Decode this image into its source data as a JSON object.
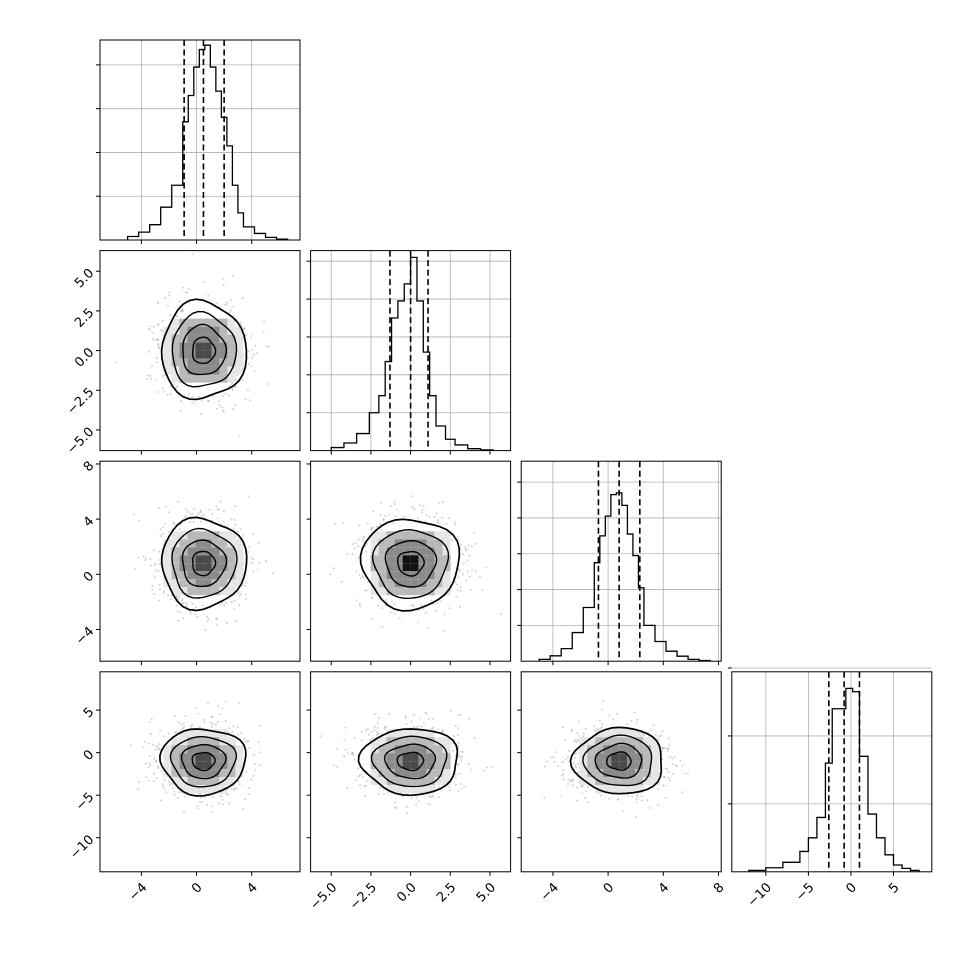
{
  "figure": {
    "background": "#ffffff",
    "line_color": "#000000",
    "grid_color": "#b0b0b0",
    "scatter_color": "#9a9a9a",
    "density_colors": [
      "#ffffff",
      "#e6e6e6",
      "#b9b9b9",
      "#8a8a8a",
      "#4a4a4a",
      "#111111"
    ]
  },
  "chart_data": {
    "type": "corner",
    "grid": true,
    "parameters": [
      {
        "range": [
          -7,
          7.5
        ],
        "ticks": [
          -4,
          0,
          4
        ],
        "tick_labels": [
          "−4",
          "0",
          "4"
        ],
        "mean": 0.5,
        "sigma": 1.5,
        "quantiles": [
          -0.9,
          0.5,
          2.0
        ],
        "hist_ticks": [
          1,
          2,
          3,
          4
        ],
        "hist": {
          "edges": [
            -5.0,
            -4.2,
            -3.4,
            -2.6,
            -1.8,
            -1.0,
            -0.6,
            -0.2,
            0.2,
            0.6,
            1.0,
            1.4,
            1.8,
            2.2,
            2.6,
            3.0,
            3.4,
            4.2,
            5.0,
            5.8,
            6.6
          ],
          "counts": [
            0.08,
            0.18,
            0.35,
            0.75,
            1.25,
            2.7,
            3.3,
            3.95,
            4.35,
            4.45,
            3.95,
            3.4,
            2.8,
            2.15,
            1.25,
            0.62,
            0.3,
            0.15,
            0.06,
            0.02
          ],
          "ylim": [
            0,
            4.5
          ]
        }
      },
      {
        "range": [
          -6.3,
          6.3
        ],
        "ticks": [
          -5.0,
          -2.5,
          0.0,
          2.5,
          5.0
        ],
        "tick_labels": [
          "−5.0",
          "−2.5",
          "0.0",
          "2.5",
          "5.0"
        ],
        "mean": 0,
        "sigma": 1.5,
        "quantiles": [
          -1.3,
          0.0,
          1.1
        ],
        "hist_ticks": [
          1,
          2,
          3,
          4,
          5
        ],
        "hist": {
          "edges": [
            -5.0,
            -4.2,
            -3.4,
            -2.6,
            -2.0,
            -1.6,
            -1.2,
            -0.8,
            -0.4,
            0.0,
            0.4,
            0.8,
            1.2,
            1.6,
            2.2,
            2.8,
            3.6,
            4.4,
            5.2
          ],
          "counts": [
            0.08,
            0.2,
            0.45,
            1.0,
            1.45,
            2.35,
            3.5,
            3.95,
            4.4,
            5.1,
            3.95,
            2.6,
            1.45,
            0.65,
            0.3,
            0.15,
            0.05,
            0.02
          ],
          "ylim": [
            0,
            5.2
          ]
        }
      },
      {
        "range": [
          -6.3,
          8.2
        ],
        "ticks": [
          -4,
          0,
          4,
          8
        ],
        "tick_labels": [
          "−4",
          "0",
          "4",
          "8"
        ],
        "mean": 0.8,
        "sigma": 1.6,
        "quantiles": [
          -0.7,
          0.8,
          2.3
        ],
        "hist_ticks": [
          1,
          2,
          3,
          4,
          5
        ],
        "hist": {
          "edges": [
            -5.0,
            -4.2,
            -3.4,
            -2.6,
            -1.8,
            -1.0,
            -0.6,
            -0.2,
            0.2,
            0.6,
            1.0,
            1.4,
            1.8,
            2.2,
            2.6,
            3.4,
            4.2,
            5.0,
            5.8,
            6.6,
            7.4
          ],
          "counts": [
            0.05,
            0.15,
            0.35,
            0.8,
            1.5,
            2.75,
            3.5,
            4.05,
            4.65,
            4.7,
            4.35,
            3.55,
            2.95,
            2.05,
            1.0,
            0.55,
            0.28,
            0.14,
            0.05,
            0.02
          ],
          "ylim": [
            0,
            5.5
          ]
        }
      },
      {
        "range": [
          -14,
          9.5
        ],
        "ticks": [
          -10,
          -5,
          0,
          5
        ],
        "tick_labels": [
          "−10",
          "−5",
          "0",
          "5"
        ],
        "mean": -1.0,
        "sigma": 1.9,
        "quantiles": [
          -2.6,
          -0.8,
          1.0
        ],
        "hist_ticks": [
          1,
          2,
          3
        ],
        "hist": {
          "edges": [
            -12.0,
            -10.0,
            -8.0,
            -6.0,
            -5.0,
            -4.0,
            -3.0,
            -2.2,
            -1.4,
            -0.6,
            0.2,
            1.0,
            2.0,
            3.0,
            4.0,
            5.0,
            6.0,
            7.0,
            8.0
          ],
          "counts": [
            0.02,
            0.06,
            0.14,
            0.3,
            0.5,
            0.8,
            1.6,
            2.4,
            2.4,
            2.7,
            2.65,
            1.7,
            0.85,
            0.5,
            0.25,
            0.1,
            0.05,
            0.02
          ],
          "ylim": [
            0,
            2.9
          ]
        }
      }
    ],
    "levels_sigma": [
      0.55,
      1.05,
      1.55,
      2.05
    ],
    "contour_levels": [
      0.5,
      1.0,
      1.5,
      2.0
    ]
  }
}
